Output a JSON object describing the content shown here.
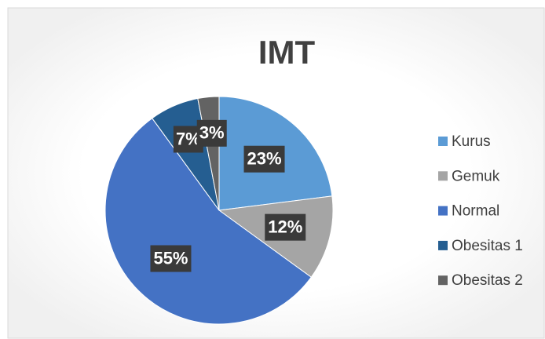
{
  "chart_data": {
    "type": "pie",
    "title": "IMT",
    "categories": [
      "Kurus",
      "Gemuk",
      "Normal",
      "Obesitas 1",
      "Obesitas 2"
    ],
    "values": [
      23,
      12,
      55,
      7,
      3
    ],
    "value_labels": [
      "23%",
      "12%",
      "55%",
      "7%",
      "3%"
    ],
    "colors": [
      "#5b9bd5",
      "#a5a5a5",
      "#4472c4",
      "#255e91",
      "#636363"
    ],
    "legend": "right"
  }
}
